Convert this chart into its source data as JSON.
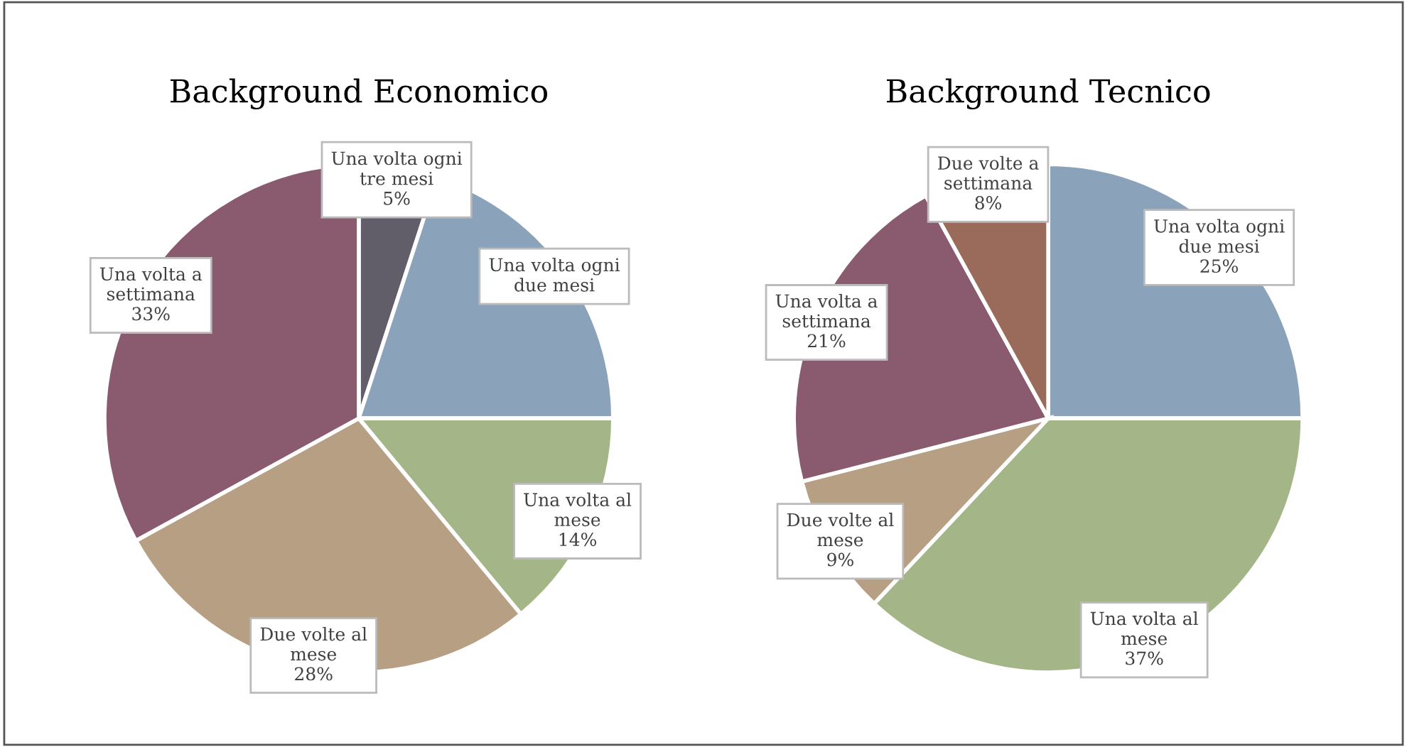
{
  "chart_data": [
    {
      "type": "pie",
      "title": "Background Economico",
      "categories": [
        "Una volta ogni tre mesi",
        "Una volta ogni due mesi",
        "Una volta al mese",
        "Due volte al mese",
        "Una volta a settimana"
      ],
      "values": [
        5,
        20,
        14,
        28,
        33
      ],
      "value_labels": [
        "5%",
        null,
        "14%",
        "28%",
        "33%"
      ],
      "colors": [
        "#625e69",
        "#8ba3ba",
        "#a4b687",
        "#b69f83",
        "#8a5a6f"
      ]
    },
    {
      "type": "pie",
      "title": "Background Tecnico",
      "categories": [
        "Una volta ogni due mesi",
        "Una volta al mese",
        "Due volte al mese",
        "Una volta a settimana",
        "Due volte a settimana"
      ],
      "values": [
        25,
        37,
        9,
        21,
        8
      ],
      "value_labels": [
        "25%",
        "37%",
        "9%",
        "21%",
        "8%"
      ],
      "colors": [
        "#8ba3ba",
        "#a4b687",
        "#b69f83",
        "#8a5a6f",
        "#9a6b5a"
      ]
    }
  ]
}
